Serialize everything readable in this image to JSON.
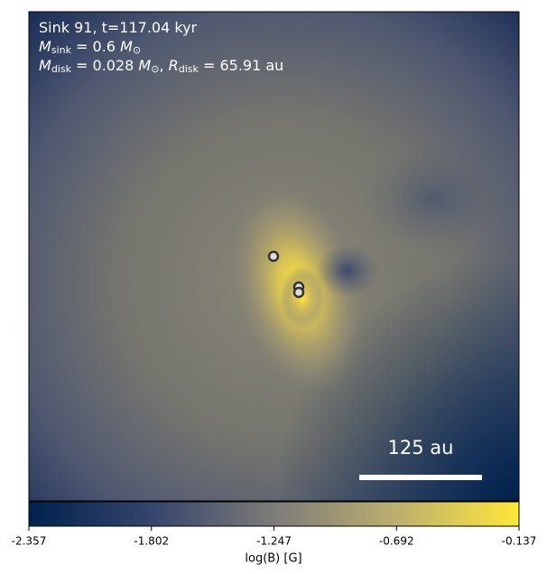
{
  "chart_data": {
    "type": "image",
    "annotation_lines": [
      [
        {
          "text": "Sink 91, t=117.04 kyr"
        }
      ],
      [
        {
          "text": "M",
          "italic": true
        },
        {
          "text": "sink",
          "sub": true
        },
        {
          "text": " = 0.6 "
        },
        {
          "text": "M",
          "italic": true
        },
        {
          "text": "⊙",
          "sub": true
        }
      ],
      [
        {
          "text": "M",
          "italic": true
        },
        {
          "text": "disk",
          "sub": true
        },
        {
          "text": " = 0.028 "
        },
        {
          "text": "M",
          "italic": true
        },
        {
          "text": "⊙",
          "sub": true
        },
        {
          "text": ", "
        },
        {
          "text": "R",
          "italic": true
        },
        {
          "text": "disk",
          "sub": true
        },
        {
          "text": " = 65.91 au"
        }
      ]
    ],
    "scale_bar_label": "125 au",
    "colorbar": {
      "label": "log(B) [G]",
      "clim": [
        -2.357,
        -0.137
      ],
      "ticks": [
        {
          "value": -2.357,
          "label": "-2.357"
        },
        {
          "value": -1.802,
          "label": "-1.802"
        },
        {
          "value": -1.247,
          "label": "-1.247"
        },
        {
          "value": -0.692,
          "label": "-0.692"
        },
        {
          "value": -0.137,
          "label": "-0.137"
        }
      ],
      "colors": [
        "#00224e",
        "#35456c",
        "#7c7b78",
        "#bcaf6f",
        "#fee838"
      ]
    }
  }
}
